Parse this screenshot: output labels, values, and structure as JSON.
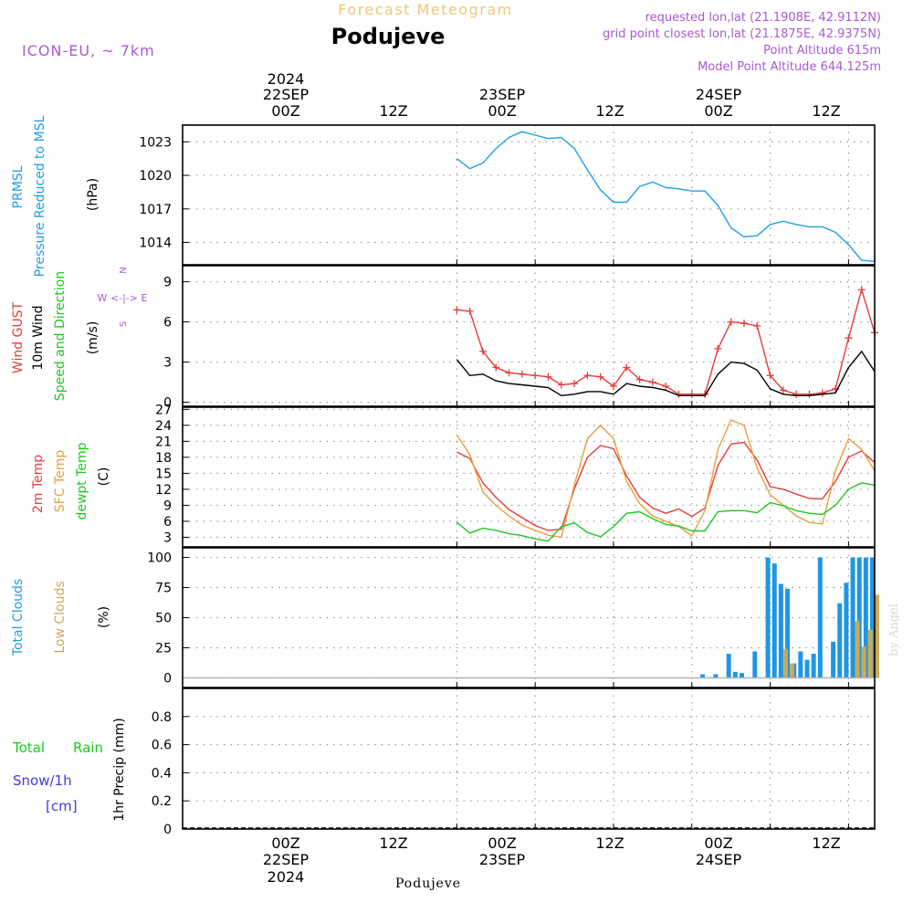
{
  "header": {
    "title": "Forecast Meteogram",
    "location": "Podujeve",
    "model": "ICON-EU, ~ 7km",
    "requested": "requested lon,lat (21.1908E, 42.9112N)",
    "gridpoint": "grid point closest lon,lat (21.1875E, 42.9375N)",
    "point_alt": "Point Altitude 615m",
    "model_alt": "Model Point Altitude 644.125m",
    "footer_location": "Podujeve",
    "watermark": "by Angel"
  },
  "time_axis": {
    "top_year": "2024",
    "day_labels": [
      "22SEP",
      "23SEP",
      "24SEP"
    ],
    "hour_labels": [
      "00Z",
      "12Z",
      "00Z",
      "12Z",
      "00Z",
      "12Z"
    ],
    "bottom_year": "2024"
  },
  "panel_labels": {
    "pressure": [
      "PRMSL",
      "Pressure Reduced to MSL",
      "(hPa)"
    ],
    "wind": [
      "Wind GUST",
      "10m Wind",
      "Speed and Direction",
      "(m/s)"
    ],
    "compass": [
      "N",
      "W <-|-> E",
      "S"
    ],
    "temp": [
      "2m Temp",
      "SFC Temp",
      "dewpt Temp",
      "(C)"
    ],
    "clouds": [
      "Total Clouds",
      "Low Clouds",
      "(%)"
    ],
    "precip": [
      "Total",
      "Rain",
      "Snow/1h",
      "[cm]",
      "1hr Precip (mm)"
    ]
  },
  "colors": {
    "pressure": "#1ea0e6",
    "gust": "#e63c3c",
    "wind": "#000000",
    "temp2m": "#e63c3c",
    "sfc": "#e6a03c",
    "dewpt": "#1ec81e",
    "total_clouds": "#1e96e6",
    "low_clouds": "#c8aa5a",
    "rain": "#1ec81e",
    "snow": "#3c3ce6",
    "header_purple": "#aa5ad2",
    "title_orange": "#f0c878",
    "compass_purple": "#aa5ad2"
  },
  "chart_data": [
    {
      "type": "line",
      "panel": "pressure",
      "ylabel": "(hPa)",
      "yticks": [
        1014,
        1017,
        1020,
        1023
      ],
      "x": [
        0,
        2,
        4,
        6,
        8,
        10,
        12,
        14,
        16,
        18,
        20,
        22,
        24,
        26,
        28,
        30,
        32,
        34,
        36,
        38,
        40,
        42,
        44,
        46,
        48,
        50,
        52,
        54,
        56,
        58,
        60,
        62,
        64
      ],
      "series": [
        {
          "name": "PRMSL",
          "values": [
            1021.5,
            1020.6,
            1021.1,
            1022.4,
            1023.4,
            1023.9,
            1023.6,
            1023.3,
            1023.4,
            1022.4,
            1020.5,
            1018.7,
            1017.6,
            1017.6,
            1019.0,
            1019.4,
            1018.9,
            1018.8,
            1018.6,
            1018.6,
            1017.3,
            1015.3,
            1014.5,
            1014.6,
            1015.6,
            1015.9,
            1015.6,
            1015.4,
            1015.4,
            1014.9,
            1013.8,
            1012.4,
            1012.3
          ]
        }
      ]
    },
    {
      "type": "line",
      "panel": "wind",
      "ylabel": "(m/s)",
      "yticks": [
        0,
        3,
        6,
        9
      ],
      "x": [
        0,
        2,
        4,
        6,
        8,
        10,
        12,
        14,
        16,
        18,
        20,
        22,
        24,
        26,
        28,
        30,
        32,
        34,
        36,
        38,
        40,
        42,
        44,
        46,
        48,
        50,
        52,
        54,
        56,
        58,
        60,
        62,
        64
      ],
      "series": [
        {
          "name": "Wind GUST",
          "values": [
            6.9,
            6.8,
            3.8,
            2.6,
            2.2,
            2.1,
            2.0,
            1.9,
            1.3,
            1.4,
            2.0,
            1.9,
            1.2,
            2.6,
            1.7,
            1.5,
            1.2,
            0.6,
            0.6,
            0.6,
            4.0,
            6.0,
            5.9,
            5.7,
            2.0,
            0.9,
            0.6,
            0.6,
            0.7,
            1.0,
            4.8,
            8.4,
            5.2
          ]
        },
        {
          "name": "10m Wind",
          "values": [
            3.2,
            2.0,
            2.1,
            1.6,
            1.4,
            1.3,
            1.2,
            1.1,
            0.5,
            0.6,
            0.8,
            0.8,
            0.6,
            1.4,
            1.2,
            1.1,
            0.9,
            0.5,
            0.5,
            0.5,
            2.1,
            3.0,
            2.9,
            2.4,
            1.0,
            0.6,
            0.5,
            0.5,
            0.6,
            0.7,
            2.6,
            3.8,
            2.3
          ]
        }
      ]
    },
    {
      "type": "line",
      "panel": "temperature",
      "ylabel": "(C)",
      "yticks": [
        3,
        6,
        9,
        12,
        15,
        18,
        21,
        24,
        27
      ],
      "x": [
        0,
        2,
        4,
        6,
        8,
        10,
        12,
        14,
        16,
        18,
        20,
        22,
        24,
        26,
        28,
        30,
        32,
        34,
        36,
        38,
        40,
        42,
        44,
        46,
        48,
        50,
        52,
        54,
        56,
        58,
        60,
        62,
        64
      ],
      "series": [
        {
          "name": "2m Temp",
          "values": [
            19,
            17.8,
            13.2,
            10.5,
            8.2,
            6.7,
            5.2,
            4.3,
            4.5,
            12.1,
            18.0,
            20.2,
            19.6,
            14.5,
            10.5,
            8.5,
            7.5,
            8.3,
            6.9,
            8.5,
            16.5,
            20.5,
            20.8,
            17.5,
            12.5,
            12.0,
            11.1,
            10.3,
            10.2,
            13.5,
            18.0,
            19.2,
            17.0
          ]
        },
        {
          "name": "SFC Temp",
          "values": [
            22.2,
            18.5,
            11.5,
            9.0,
            7.0,
            5.3,
            4.3,
            3.4,
            3.0,
            12.8,
            21.5,
            24.0,
            21.5,
            13.5,
            9.3,
            7.0,
            6.0,
            5.0,
            3.3,
            8.0,
            19.5,
            25.0,
            24.0,
            16.0,
            11.0,
            9.0,
            7.0,
            5.8,
            5.5,
            15.5,
            21.5,
            19.5,
            15.5
          ]
        },
        {
          "name": "dewpt Temp",
          "values": [
            5.8,
            3.8,
            4.7,
            4.3,
            3.7,
            3.3,
            2.7,
            2.3,
            5.0,
            5.7,
            3.9,
            3.1,
            5.0,
            7.5,
            7.8,
            6.5,
            5.4,
            5.1,
            4.2,
            4.2,
            7.8,
            8.0,
            8.0,
            7.6,
            9.5,
            8.9,
            8.0,
            7.5,
            7.3,
            9.0,
            12.0,
            13.2,
            12.8
          ]
        }
      ]
    },
    {
      "type": "bar",
      "panel": "clouds",
      "ylabel": "(%)",
      "yticks": [
        0,
        25,
        50,
        75,
        100
      ],
      "x": [
        38,
        40,
        42,
        43,
        44,
        46,
        48,
        49,
        50,
        51,
        52,
        53,
        54,
        55,
        56,
        58,
        59,
        60,
        61,
        62,
        63,
        64
      ],
      "series": [
        {
          "name": "Total Clouds",
          "values": [
            3,
            3,
            20,
            5,
            4,
            22,
            100,
            95,
            78,
            74,
            12,
            22,
            15,
            20,
            100,
            30,
            62,
            79,
            100,
            100,
            100,
            100
          ]
        },
        {
          "name": "Low Clouds",
          "values": [
            0,
            0,
            0,
            0,
            0,
            0,
            0,
            0,
            24,
            12,
            0,
            0,
            0,
            0,
            0,
            0,
            0,
            0,
            47,
            26,
            40,
            69
          ]
        }
      ]
    },
    {
      "type": "bar",
      "panel": "precipitation",
      "ylabel": "1hr Precip (mm)",
      "yticks": [
        0,
        0.2,
        0.4,
        0.6,
        0.8
      ],
      "series": [
        {
          "name": "Total",
          "values": []
        },
        {
          "name": "Rain",
          "values": []
        },
        {
          "name": "Snow/1h",
          "values": []
        }
      ]
    }
  ]
}
